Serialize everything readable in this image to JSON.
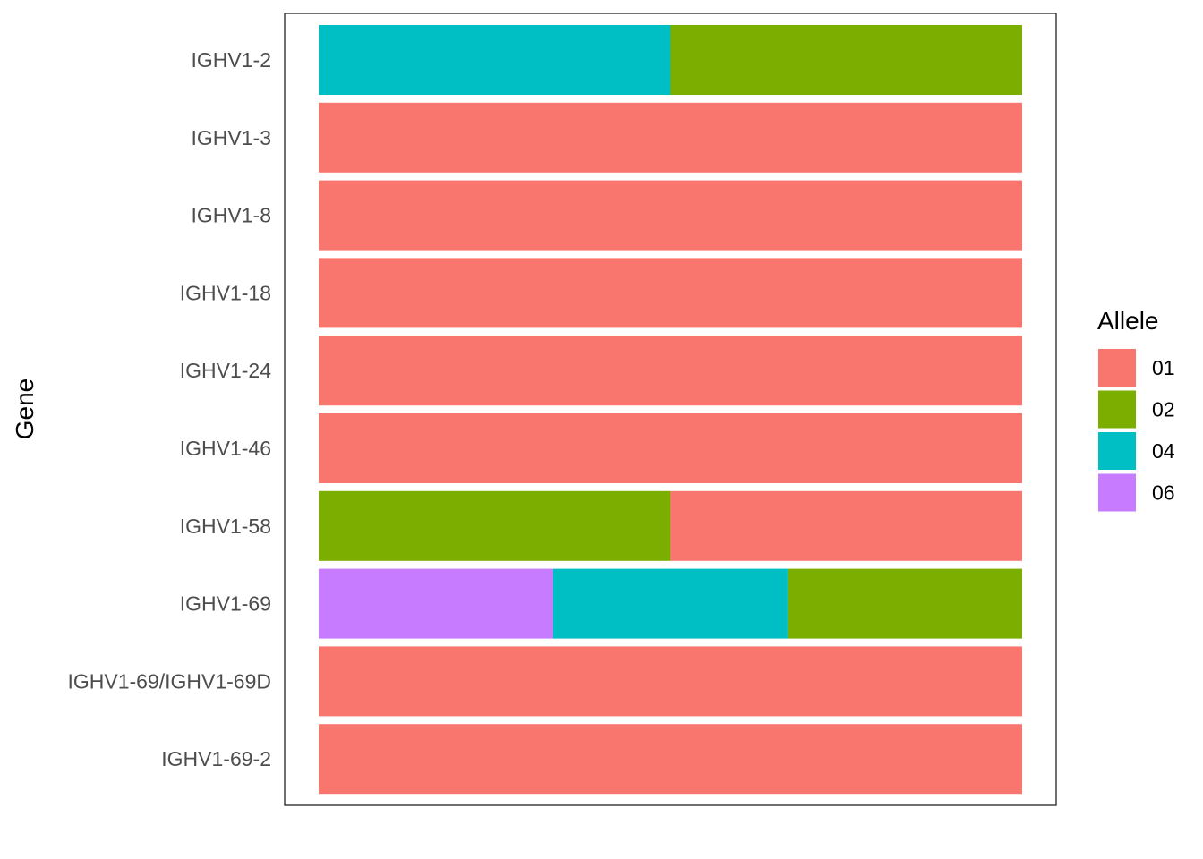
{
  "chart_data": {
    "type": "bar",
    "orientation": "horizontal",
    "stacked": true,
    "normalized": true,
    "ylabel": "Gene",
    "xlabel": "",
    "grid": false,
    "legend": {
      "title": "Allele",
      "position": "right",
      "entries": [
        {
          "label": "01",
          "color": "#F8766D"
        },
        {
          "label": "02",
          "color": "#7CAE00"
        },
        {
          "label": "04",
          "color": "#00BFC4"
        },
        {
          "label": "06",
          "color": "#C77CFF"
        }
      ]
    },
    "categories": [
      "IGHV1-2",
      "IGHV1-3",
      "IGHV1-8",
      "IGHV1-18",
      "IGHV1-24",
      "IGHV1-46",
      "IGHV1-58",
      "IGHV1-69",
      "IGHV1-69/IGHV1-69D",
      "IGHV1-69-2"
    ],
    "rows": [
      {
        "gene": "IGHV1-2",
        "segments": [
          {
            "allele": "04",
            "share": 0.5
          },
          {
            "allele": "02",
            "share": 0.5
          }
        ]
      },
      {
        "gene": "IGHV1-3",
        "segments": [
          {
            "allele": "01",
            "share": 1.0
          }
        ]
      },
      {
        "gene": "IGHV1-8",
        "segments": [
          {
            "allele": "01",
            "share": 1.0
          }
        ]
      },
      {
        "gene": "IGHV1-18",
        "segments": [
          {
            "allele": "01",
            "share": 1.0
          }
        ]
      },
      {
        "gene": "IGHV1-24",
        "segments": [
          {
            "allele": "01",
            "share": 1.0
          }
        ]
      },
      {
        "gene": "IGHV1-46",
        "segments": [
          {
            "allele": "01",
            "share": 1.0
          }
        ]
      },
      {
        "gene": "IGHV1-58",
        "segments": [
          {
            "allele": "02",
            "share": 0.5
          },
          {
            "allele": "01",
            "share": 0.5
          }
        ]
      },
      {
        "gene": "IGHV1-69",
        "segments": [
          {
            "allele": "06",
            "share": 0.3333
          },
          {
            "allele": "04",
            "share": 0.3333
          },
          {
            "allele": "02",
            "share": 0.3334
          }
        ]
      },
      {
        "gene": "IGHV1-69/IGHV1-69D",
        "segments": [
          {
            "allele": "01",
            "share": 1.0
          }
        ]
      },
      {
        "gene": "IGHV1-69-2",
        "segments": [
          {
            "allele": "01",
            "share": 1.0
          }
        ]
      }
    ]
  }
}
